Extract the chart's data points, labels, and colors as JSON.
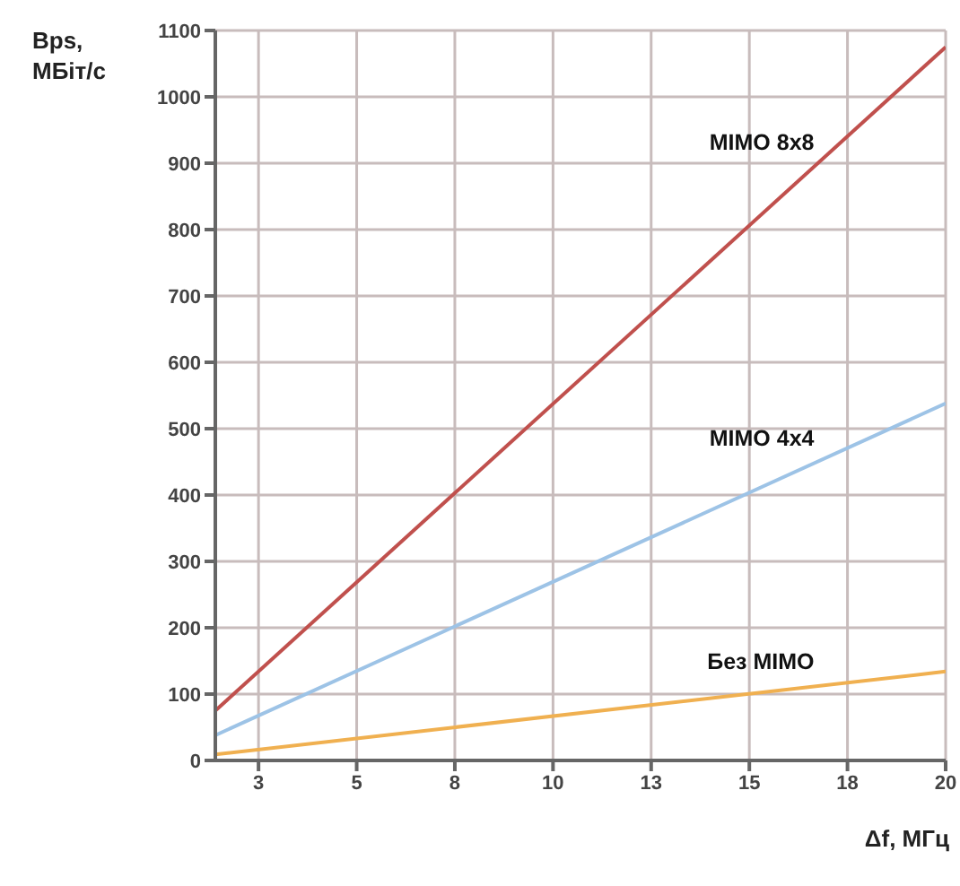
{
  "chart_data": {
    "type": "line",
    "xlabel": "Δf, МГц",
    "ylabel": "Bps,\nМБіт/с",
    "x": [
      1.4,
      20
    ],
    "series": [
      {
        "name": "MIMO 8x8",
        "color": "#c0504d",
        "values": [
          75,
          1075
        ]
      },
      {
        "name": "MIMO 4x4",
        "color": "#9dc3e6",
        "values": [
          38,
          538
        ]
      },
      {
        "name": "Без MIMO",
        "color": "#f0b050",
        "values": [
          9,
          134
        ]
      }
    ],
    "xlim": [
      1.4,
      20
    ],
    "xticks": [
      {
        "value": 2.5,
        "label": "3"
      },
      5,
      {
        "value": 7.5,
        "label": "8"
      },
      10,
      {
        "value": 12.5,
        "label": "13"
      },
      15,
      {
        "value": 17.5,
        "label": "18"
      },
      20
    ],
    "ylim": [
      0,
      1100
    ],
    "yticks": [
      0,
      100,
      200,
      300,
      400,
      500,
      600,
      700,
      800,
      900,
      1000,
      1100
    ],
    "grid": true,
    "marker": "none",
    "line_style": "solid"
  }
}
